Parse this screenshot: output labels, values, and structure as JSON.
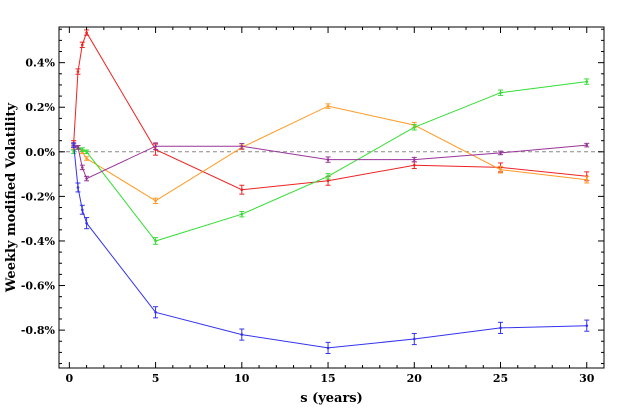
{
  "chart_data": {
    "type": "line",
    "title": "",
    "xlabel": "s (years)",
    "ylabel": "Weekly modified Volatility",
    "xlim": [
      -0.6,
      31
    ],
    "ylim": [
      -0.97,
      0.56
    ],
    "x_ticks": [
      0,
      5,
      10,
      15,
      20,
      25,
      30
    ],
    "x_tick_labels": [
      "0",
      "5",
      "10",
      "15",
      "20",
      "25",
      "30"
    ],
    "x_minor_step": 1,
    "y_ticks": [
      -0.8,
      -0.6,
      -0.4,
      -0.2,
      0.0,
      0.2,
      0.4
    ],
    "y_tick_labels": [
      "-0.8%",
      "-0.6%",
      "-0.4%",
      "-0.2%",
      "0.0%",
      "0.2%",
      "0.4%"
    ],
    "y_minor_step": 0.05,
    "zero_line": {
      "y": 0,
      "style": "dashed",
      "color": "#888888"
    },
    "grid": false,
    "legend": "none",
    "series": [
      {
        "color": "#ee2222",
        "x": [
          0.25,
          0.5,
          0.75,
          1,
          5,
          10,
          15,
          20,
          25,
          30
        ],
        "y": [
          0.04,
          0.36,
          0.48,
          0.535,
          0.01,
          -0.17,
          -0.13,
          -0.06,
          -0.07,
          -0.11
        ],
        "err": [
          0.01,
          0.012,
          0.012,
          0.012,
          0.025,
          0.02,
          0.02,
          0.015,
          0.02,
          0.02
        ]
      },
      {
        "color": "#ff9922",
        "x": [
          0.25,
          0.5,
          0.75,
          1,
          5,
          10,
          15,
          20,
          25,
          30
        ],
        "y": [
          0.02,
          0.02,
          0.0,
          -0.03,
          -0.22,
          0.02,
          0.205,
          0.12,
          -0.08,
          -0.125
        ],
        "err": [
          0.008,
          0.008,
          0.008,
          0.008,
          0.012,
          0.01,
          0.01,
          0.012,
          0.015,
          0.015
        ]
      },
      {
        "color": "#33dd33",
        "x": [
          0.25,
          0.5,
          0.75,
          1,
          5,
          10,
          15,
          20,
          25,
          30
        ],
        "y": [
          0.0,
          0.02,
          0.01,
          0.0,
          -0.4,
          -0.28,
          -0.11,
          0.11,
          0.265,
          0.315
        ],
        "err": [
          0.008,
          0.008,
          0.008,
          0.008,
          0.015,
          0.012,
          0.012,
          0.012,
          0.012,
          0.012
        ]
      },
      {
        "color": "#993399",
        "x": [
          0.25,
          0.5,
          0.75,
          1,
          5,
          10,
          15,
          20,
          25,
          30
        ],
        "y": [
          0.03,
          0.02,
          -0.07,
          -0.12,
          0.025,
          0.025,
          -0.035,
          -0.035,
          -0.005,
          0.03
        ],
        "err": [
          0.008,
          0.008,
          0.01,
          0.01,
          0.015,
          0.012,
          0.012,
          0.01,
          0.008,
          0.008
        ]
      },
      {
        "color": "#3333ee",
        "x": [
          0.25,
          0.5,
          0.75,
          1,
          5,
          10,
          15,
          20,
          25,
          30
        ],
        "y": [
          0.03,
          -0.16,
          -0.26,
          -0.32,
          -0.72,
          -0.82,
          -0.88,
          -0.84,
          -0.79,
          -0.78
        ],
        "err": [
          0.01,
          0.02,
          0.02,
          0.025,
          0.025,
          0.025,
          0.025,
          0.025,
          0.025,
          0.025
        ]
      }
    ]
  }
}
